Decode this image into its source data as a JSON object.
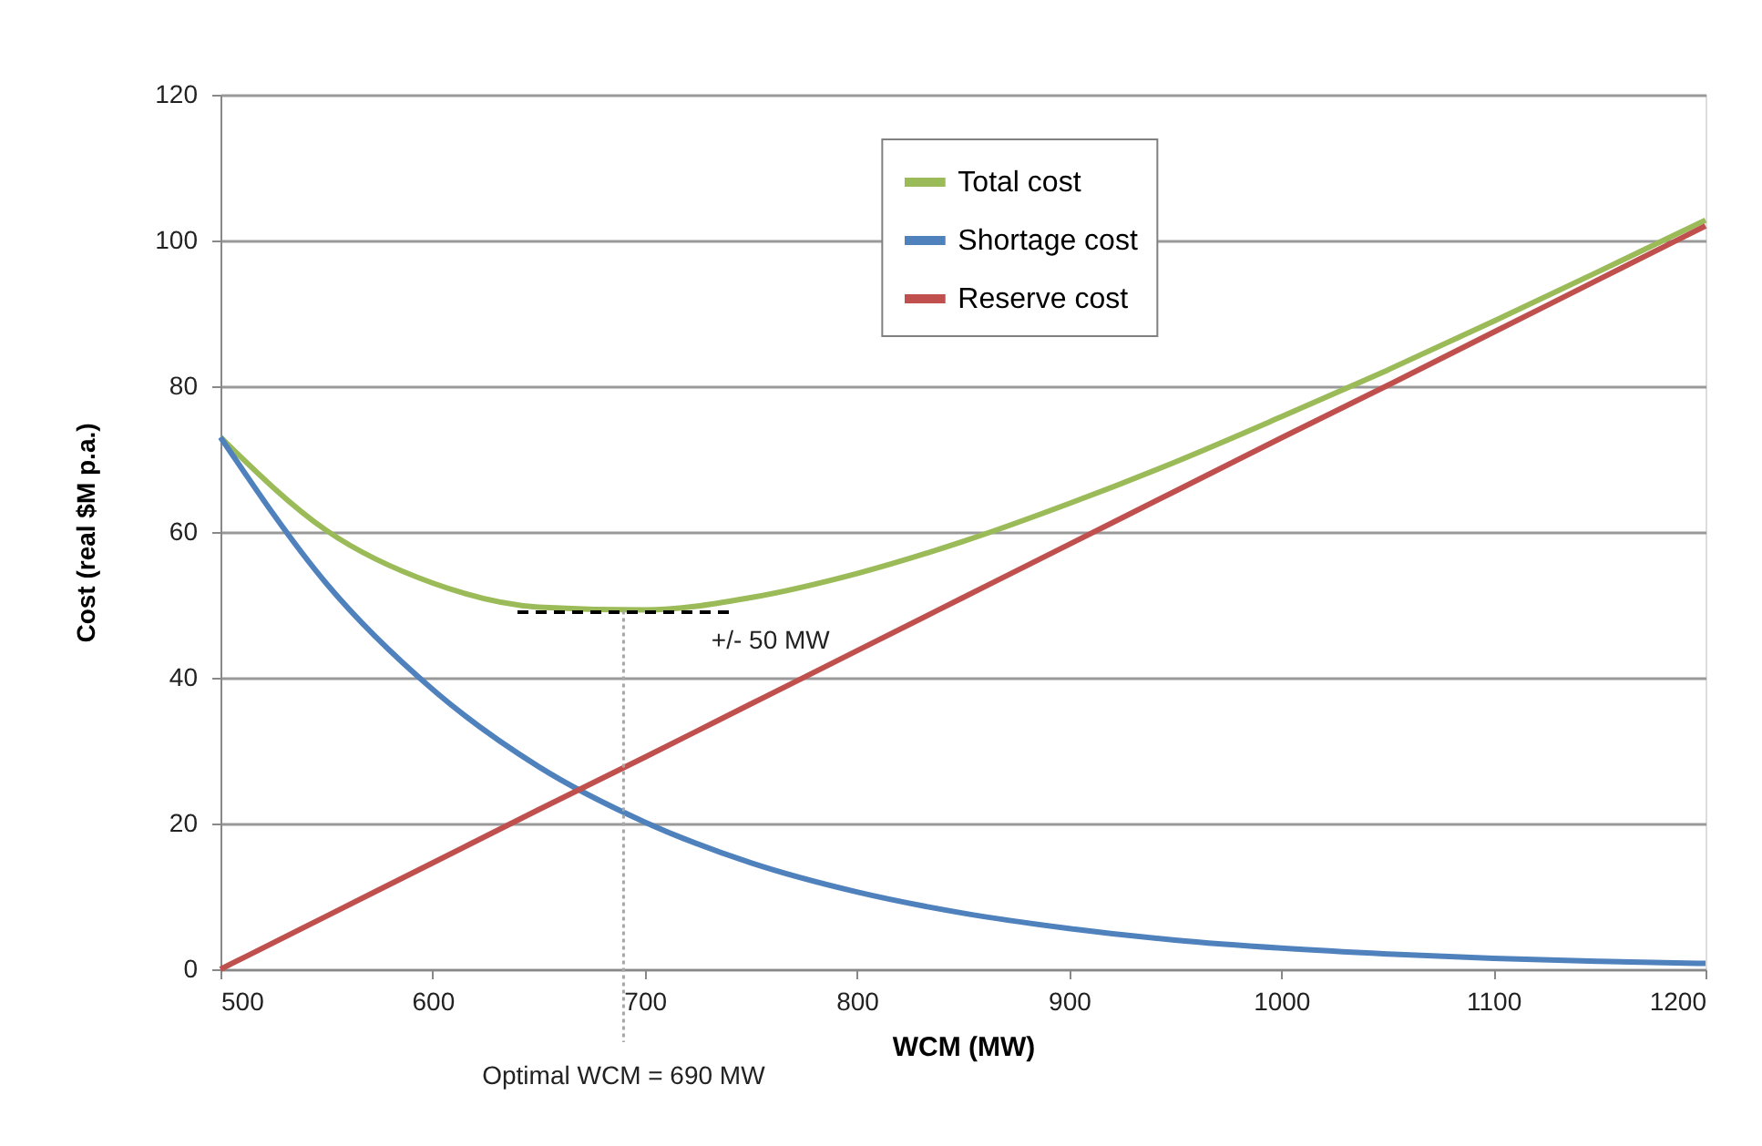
{
  "chart_data": {
    "type": "line",
    "xlabel": "WCM (MW)",
    "ylabel": "Cost (real $M p.a.)",
    "x": [
      500,
      550,
      600,
      650,
      700,
      750,
      800,
      850,
      900,
      950,
      1000,
      1050,
      1100,
      1150,
      1200
    ],
    "series": [
      {
        "name": "Total cost",
        "color": "#9bbb59",
        "values": [
          73,
          60.2,
          53.0,
          49.7,
          49.3,
          51.0,
          54.3,
          58.7,
          63.9,
          69.6,
          75.8,
          82.2,
          88.9,
          95.8,
          102.8
        ]
      },
      {
        "name": "Shortage cost",
        "color": "#4f81bd",
        "values": [
          73,
          52.9,
          38.4,
          27.8,
          20.2,
          14.6,
          10.6,
          7.7,
          5.6,
          4.0,
          2.9,
          2.1,
          1.5,
          1.1,
          0.8
        ]
      },
      {
        "name": "Reserve cost",
        "color": "#c0504d",
        "values": [
          0,
          7.3,
          14.6,
          21.9,
          29.1,
          36.4,
          43.7,
          51.0,
          58.3,
          65.6,
          72.9,
          80.1,
          87.4,
          94.7,
          102.0
        ]
      },
      {
        "type": "line",
        "color": "#000000",
        "line_style": "dashed",
        "x": [
          640,
          740
        ],
        "values": [
          49,
          49
        ]
      }
    ],
    "xlim": [
      500,
      1200
    ],
    "xticks": [
      500,
      600,
      700,
      800,
      900,
      1000,
      1100,
      1200
    ],
    "ylim": [
      0,
      120
    ],
    "yticks": [
      0,
      20,
      40,
      60,
      80,
      100,
      120
    ],
    "grid": "y",
    "legend": "top right",
    "marker": "none",
    "line_style": "solid",
    "ref_lines": [
      {
        "axis": "x",
        "value": 690,
        "label": "Optimal WCM = 690 MW",
        "color": "#a6a6a6",
        "line_style": "dotted"
      }
    ],
    "annotations": [
      "+/- 50 MW"
    ]
  }
}
